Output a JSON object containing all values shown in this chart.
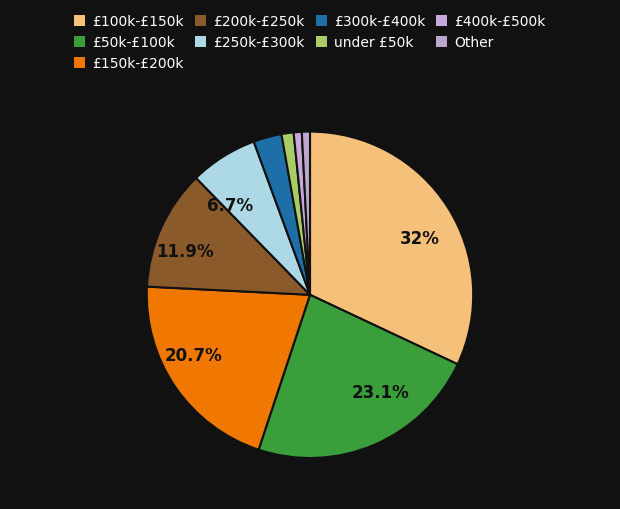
{
  "slices": [
    {
      "label": "£100k-£150k",
      "pct": 32.0,
      "color": "#F5C07A",
      "label_text": "32%"
    },
    {
      "label": "£50k-£100k",
      "pct": 23.1,
      "color": "#3A9E3A",
      "label_text": "23.1%"
    },
    {
      "label": "£150k-£200k",
      "pct": 20.7,
      "color": "#F07800",
      "label_text": "20.7%"
    },
    {
      "label": "£200k-£250k",
      "pct": 11.9,
      "color": "#8B5A2B",
      "label_text": "11.9%"
    },
    {
      "label": "£250k-£300k",
      "pct": 6.7,
      "color": "#ADD8E6",
      "label_text": "6.7%"
    },
    {
      "label": "£300k-£400k",
      "pct": 2.8,
      "color": "#1E6FA8",
      "label_text": ""
    },
    {
      "label": "under £50k",
      "pct": 1.2,
      "color": "#AACC66",
      "label_text": ""
    },
    {
      "label": "£400k-£500k",
      "pct": 0.8,
      "color": "#C8A8D8",
      "label_text": ""
    },
    {
      "label": "Other",
      "pct": 0.8,
      "color": "#BBA8CC",
      "label_text": ""
    }
  ],
  "legend_order": [
    {
      "label": "£100k-£150k",
      "color": "#F5C07A"
    },
    {
      "label": "£50k-£100k",
      "color": "#3A9E3A"
    },
    {
      "label": "£150k-£200k",
      "color": "#F07800"
    },
    {
      "label": "£200k-£250k",
      "color": "#8B5A2B"
    },
    {
      "label": "£250k-£300k",
      "color": "#ADD8E6"
    },
    {
      "label": "£300k-£400k",
      "color": "#1E6FA8"
    },
    {
      "label": "under £50k",
      "color": "#AACC66"
    },
    {
      "label": "£400k-£500k",
      "color": "#C8A8D8"
    },
    {
      "label": "Other",
      "color": "#BBA8CC"
    }
  ],
  "background_color": "#111111",
  "text_color": "#ffffff",
  "font_size_pct": 12,
  "font_size_legend": 10,
  "startangle": 90
}
